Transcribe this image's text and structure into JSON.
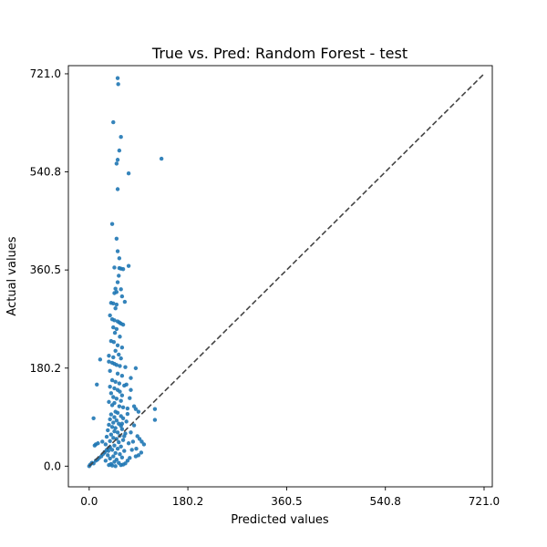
{
  "colors": {
    "points": "#1f77b4",
    "diagonal": "#444444",
    "axes": "#000000",
    "background": "#ffffff"
  },
  "chart_data": {
    "type": "scatter",
    "title": "True vs. Pred: Random Forest - test",
    "xlabel": "Predicted values",
    "ylabel": "Actual values",
    "xlim": [
      -38,
      736
    ],
    "ylim": [
      -38,
      736
    ],
    "xticks": [
      0,
      180.2,
      360.5,
      540.8,
      721.0
    ],
    "yticks": [
      0,
      180.2,
      360.5,
      540.8,
      721.0
    ],
    "xtick_labels": [
      "0.0",
      "180.2",
      "360.5",
      "540.8",
      "721.0"
    ],
    "ytick_labels": [
      "0.0",
      "180.2",
      "360.5",
      "540.8",
      "721.0"
    ],
    "grid": false,
    "reference_line": {
      "from": [
        0,
        0
      ],
      "to": [
        721.0,
        721.0
      ],
      "style": "dashed"
    },
    "points": [
      [
        52,
        713
      ],
      [
        53,
        702
      ],
      [
        44,
        632
      ],
      [
        58,
        605
      ],
      [
        55,
        580
      ],
      [
        52,
        563
      ],
      [
        50,
        556
      ],
      [
        72,
        538
      ],
      [
        52,
        509
      ],
      [
        132,
        565
      ],
      [
        42,
        445
      ],
      [
        50,
        418
      ],
      [
        52,
        395
      ],
      [
        55,
        382
      ],
      [
        72,
        368
      ],
      [
        46,
        365
      ],
      [
        55,
        364
      ],
      [
        58,
        363
      ],
      [
        62,
        362
      ],
      [
        54,
        350
      ],
      [
        52,
        338
      ],
      [
        48,
        326
      ],
      [
        58,
        325
      ],
      [
        50,
        320
      ],
      [
        46,
        318
      ],
      [
        60,
        312
      ],
      [
        65,
        302
      ],
      [
        40,
        300
      ],
      [
        44,
        299
      ],
      [
        50,
        297
      ],
      [
        48,
        290
      ],
      [
        38,
        277
      ],
      [
        42,
        270
      ],
      [
        46,
        268
      ],
      [
        52,
        266
      ],
      [
        55,
        264
      ],
      [
        58,
        262
      ],
      [
        62,
        260
      ],
      [
        44,
        255
      ],
      [
        50,
        252
      ],
      [
        47,
        245
      ],
      [
        56,
        238
      ],
      [
        40,
        230
      ],
      [
        45,
        228
      ],
      [
        52,
        222
      ],
      [
        60,
        218
      ],
      [
        48,
        212
      ],
      [
        54,
        205
      ],
      [
        36,
        203
      ],
      [
        44,
        200
      ],
      [
        58,
        198
      ],
      [
        20,
        196
      ],
      [
        36,
        192
      ],
      [
        42,
        190
      ],
      [
        46,
        188
      ],
      [
        50,
        186
      ],
      [
        56,
        184
      ],
      [
        66,
        182
      ],
      [
        85,
        180
      ],
      [
        38,
        175
      ],
      [
        52,
        170
      ],
      [
        60,
        166
      ],
      [
        76,
        162
      ],
      [
        42,
        158
      ],
      [
        48,
        155
      ],
      [
        55,
        152
      ],
      [
        64,
        148
      ],
      [
        38,
        146
      ],
      [
        46,
        143
      ],
      [
        52,
        140
      ],
      [
        56,
        137
      ],
      [
        40,
        134
      ],
      [
        60,
        130
      ],
      [
        44,
        127
      ],
      [
        50,
        124
      ],
      [
        58,
        120
      ],
      [
        36,
        118
      ],
      [
        46,
        116
      ],
      [
        42,
        112
      ],
      [
        55,
        110
      ],
      [
        62,
        108
      ],
      [
        70,
        106
      ],
      [
        85,
        105
      ],
      [
        120,
        105
      ],
      [
        90,
        100
      ],
      [
        48,
        100
      ],
      [
        52,
        98
      ],
      [
        40,
        95
      ],
      [
        58,
        92
      ],
      [
        46,
        90
      ],
      [
        62,
        88
      ],
      [
        38,
        86
      ],
      [
        50,
        84
      ],
      [
        68,
        82
      ],
      [
        120,
        85
      ],
      [
        44,
        80
      ],
      [
        54,
        78
      ],
      [
        36,
        76
      ],
      [
        58,
        74
      ],
      [
        42,
        72
      ],
      [
        48,
        70
      ],
      [
        60,
        68
      ],
      [
        34,
        66
      ],
      [
        46,
        64
      ],
      [
        52,
        62
      ],
      [
        66,
        60
      ],
      [
        40,
        58
      ],
      [
        56,
        56
      ],
      [
        32,
        54
      ],
      [
        44,
        52
      ],
      [
        50,
        50
      ],
      [
        62,
        48
      ],
      [
        38,
        46
      ],
      [
        54,
        44
      ],
      [
        72,
        42
      ],
      [
        30,
        40
      ],
      [
        46,
        38
      ],
      [
        58,
        36
      ],
      [
        36,
        34
      ],
      [
        52,
        32
      ],
      [
        42,
        30
      ],
      [
        64,
        28
      ],
      [
        28,
        26
      ],
      [
        48,
        24
      ],
      [
        56,
        22
      ],
      [
        34,
        20
      ],
      [
        44,
        18
      ],
      [
        60,
        16
      ],
      [
        38,
        14
      ],
      [
        50,
        12
      ],
      [
        30,
        10
      ],
      [
        46,
        8
      ],
      [
        54,
        6
      ],
      [
        40,
        4
      ],
      [
        36,
        2
      ],
      [
        42,
        1
      ],
      [
        48,
        0
      ],
      [
        0,
        0
      ],
      [
        2,
        3
      ],
      [
        5,
        6
      ],
      [
        8,
        5
      ],
      [
        12,
        10
      ],
      [
        15,
        12
      ],
      [
        18,
        15
      ],
      [
        22,
        18
      ],
      [
        25,
        22
      ],
      [
        28,
        25
      ],
      [
        32,
        30
      ],
      [
        35,
        28
      ],
      [
        38,
        35
      ],
      [
        12,
        40
      ],
      [
        16,
        42
      ],
      [
        10,
        38
      ],
      [
        24,
        45
      ],
      [
        8,
        88
      ],
      [
        14,
        150
      ],
      [
        82,
        110
      ],
      [
        88,
        55
      ],
      [
        92,
        50
      ],
      [
        96,
        45
      ],
      [
        100,
        40
      ],
      [
        95,
        25
      ],
      [
        90,
        20
      ],
      [
        85,
        18
      ],
      [
        78,
        30
      ],
      [
        74,
        15
      ],
      [
        70,
        10
      ],
      [
        66,
        5
      ],
      [
        62,
        3
      ],
      [
        58,
        2
      ],
      [
        70,
        96
      ],
      [
        74,
        125
      ],
      [
        76,
        140
      ],
      [
        68,
        150
      ],
      [
        80,
        45
      ],
      [
        76,
        62
      ],
      [
        82,
        75
      ],
      [
        86,
        32
      ],
      [
        64,
        55
      ],
      [
        60,
        78
      ]
    ]
  }
}
